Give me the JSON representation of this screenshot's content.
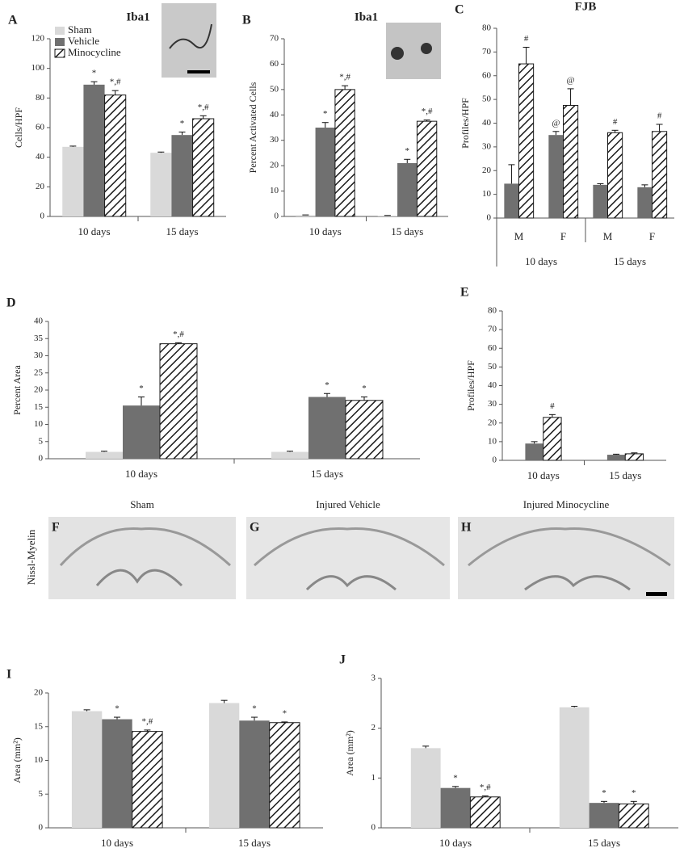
{
  "chart_data": [
    {
      "type": "bar",
      "label": "A",
      "title": "Iba1",
      "ylabel": "Cells/HPF",
      "legend": "upper left",
      "categories": [
        "10 days",
        "15 days"
      ],
      "ylim": [
        0,
        120
      ],
      "yticks": [
        0,
        20,
        40,
        60,
        80,
        100,
        120
      ],
      "series": [
        {
          "name": "Sham",
          "color": "#d9d9d9",
          "values": [
            47,
            43
          ],
          "errors": [
            0.5,
            0.5
          ],
          "annotations": [
            null,
            null
          ]
        },
        {
          "name": "Vehicle",
          "color": "#707070",
          "values": [
            89,
            55
          ],
          "errors": [
            2,
            2
          ],
          "annotations": [
            "*",
            "*"
          ]
        },
        {
          "name": "Minocycline",
          "color": "#1a1a1a",
          "pattern": "hatch",
          "values": [
            82,
            66
          ],
          "errors": [
            3,
            2
          ],
          "annotations": [
            "*,#",
            "*,#"
          ]
        }
      ]
    },
    {
      "type": "bar",
      "label": "B",
      "title": "Iba1",
      "ylabel": "Percent Activated Cells",
      "categories": [
        "10 days",
        "15 days"
      ],
      "ylim": [
        0,
        70
      ],
      "yticks": [
        0,
        10,
        20,
        30,
        40,
        50,
        60,
        70
      ],
      "series": [
        {
          "color": "#d9d9d9",
          "values": [
            0.5,
            0.3
          ],
          "errors": [
            0.1,
            0.1
          ],
          "annotations": [
            null,
            null
          ]
        },
        {
          "color": "#707070",
          "values": [
            35,
            21
          ],
          "errors": [
            2,
            1.5
          ],
          "annotations": [
            "*",
            "*"
          ]
        },
        {
          "color": "#1a1a1a",
          "pattern": "hatch",
          "values": [
            50,
            37.5
          ],
          "errors": [
            1.5,
            0.5
          ],
          "annotations": [
            "*,#",
            "*,#"
          ]
        }
      ]
    },
    {
      "type": "bar",
      "label": "C",
      "title": "FJB",
      "ylabel": "Profiles/HPF",
      "categories": [
        "M",
        "F",
        "M",
        "F"
      ],
      "groups": [
        "10 days",
        "15 days"
      ],
      "ylim": [
        0,
        80
      ],
      "yticks": [
        0,
        10,
        20,
        30,
        40,
        50,
        60,
        70,
        80
      ],
      "series": [
        {
          "color": "#707070",
          "values": [
            14.5,
            35,
            14,
            13
          ],
          "errors": [
            8,
            1.5,
            0.5,
            1
          ],
          "annotations": [
            null,
            "@",
            null,
            null
          ]
        },
        {
          "color": "#1a1a1a",
          "pattern": "hatch",
          "values": [
            65,
            47.5,
            36,
            36.5
          ],
          "errors": [
            7,
            7,
            1,
            3
          ],
          "annotations": [
            "#",
            "@",
            "#",
            "#"
          ]
        }
      ]
    },
    {
      "type": "bar",
      "label": "D",
      "ylabel": "Percent Area",
      "categories": [
        "10 days",
        "15 days"
      ],
      "ylim": [
        0,
        40
      ],
      "yticks": [
        0,
        5,
        10,
        15,
        20,
        25,
        30,
        35,
        40
      ],
      "series": [
        {
          "color": "#d9d9d9",
          "values": [
            2,
            2
          ],
          "errors": [
            0.2,
            0.2
          ],
          "annotations": [
            null,
            null
          ]
        },
        {
          "color": "#707070",
          "values": [
            15.5,
            18
          ],
          "errors": [
            2.5,
            1
          ],
          "annotations": [
            "*",
            "*"
          ]
        },
        {
          "color": "#1a1a1a",
          "pattern": "hatch",
          "values": [
            33.5,
            17
          ],
          "errors": [
            0.3,
            1
          ],
          "annotations": [
            "*,#",
            "*"
          ]
        }
      ]
    },
    {
      "type": "bar",
      "label": "E",
      "ylabel": "Profiles/HPF",
      "categories": [
        "10 days",
        "15 days"
      ],
      "ylim": [
        0,
        80
      ],
      "yticks": [
        0,
        10,
        20,
        30,
        40,
        50,
        60,
        70,
        80
      ],
      "series": [
        {
          "color": "#707070",
          "values": [
            9,
            3
          ],
          "errors": [
            1,
            0.3
          ],
          "annotations": [
            null,
            null
          ]
        },
        {
          "color": "#1a1a1a",
          "pattern": "hatch",
          "values": [
            23,
            3.5
          ],
          "errors": [
            1.5,
            0.5
          ],
          "annotations": [
            "#",
            null
          ]
        }
      ]
    },
    {
      "type": "bar",
      "label": "I",
      "ylabel": "Area (mm²)",
      "categories": [
        "10 days",
        "15 days"
      ],
      "ylim": [
        0,
        20
      ],
      "yticks": [
        0,
        5,
        10,
        15,
        20
      ],
      "series": [
        {
          "color": "#d9d9d9",
          "values": [
            17.3,
            18.5
          ],
          "errors": [
            0.2,
            0.4
          ],
          "annotations": [
            null,
            null
          ]
        },
        {
          "color": "#707070",
          "values": [
            16.1,
            15.9
          ],
          "errors": [
            0.3,
            0.5
          ],
          "annotations": [
            "*",
            "*"
          ]
        },
        {
          "color": "#1a1a1a",
          "pattern": "hatch",
          "values": [
            14.3,
            15.6
          ],
          "errors": [
            0.2,
            0.1
          ],
          "annotations": [
            "*,#",
            "*"
          ]
        }
      ]
    },
    {
      "type": "bar",
      "label": "J",
      "ylabel": "Area (mm²)",
      "categories": [
        "10 days",
        "15 days"
      ],
      "ylim": [
        0,
        3
      ],
      "yticks": [
        0,
        1,
        2,
        3
      ],
      "series": [
        {
          "color": "#d9d9d9",
          "values": [
            1.6,
            2.42
          ],
          "errors": [
            0.04,
            0.02
          ],
          "annotations": [
            null,
            null
          ]
        },
        {
          "color": "#707070",
          "values": [
            0.8,
            0.5
          ],
          "errors": [
            0.03,
            0.03
          ],
          "annotations": [
            "*",
            "*"
          ]
        },
        {
          "color": "#1a1a1a",
          "pattern": "hatch",
          "values": [
            0.62,
            0.48
          ],
          "errors": [
            0.02,
            0.05
          ],
          "annotations": [
            "*,#",
            "*"
          ]
        }
      ]
    }
  ],
  "images": {
    "stain": "Nissl-Myelin",
    "panels": [
      {
        "label": "F",
        "title": "Sham"
      },
      {
        "label": "G",
        "title": "Injured Vehicle"
      },
      {
        "label": "H",
        "title": "Injured Minocycline"
      }
    ]
  }
}
